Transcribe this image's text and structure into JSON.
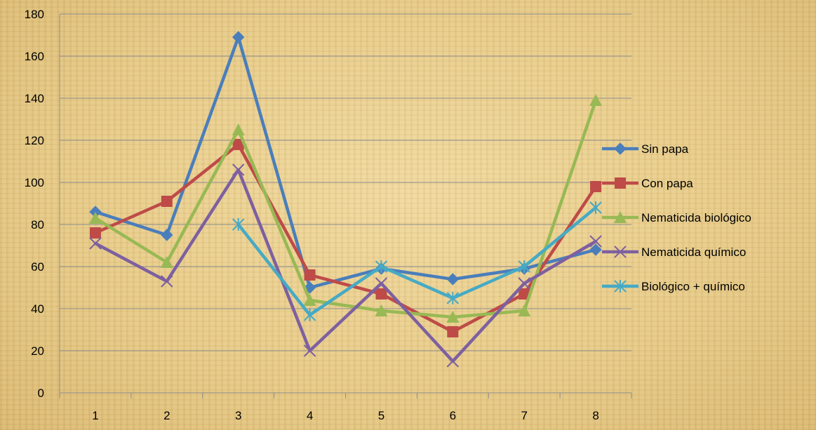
{
  "chart_data": {
    "type": "line",
    "title": "",
    "xlabel": "",
    "ylabel": "",
    "categories": [
      "1",
      "2",
      "3",
      "4",
      "5",
      "6",
      "7",
      "8"
    ],
    "ylim": [
      0,
      180
    ],
    "yticks": [
      "0",
      "20",
      "40",
      "60",
      "80",
      "100",
      "120",
      "140",
      "160",
      "180"
    ],
    "grid": "horizontal",
    "legend_position": "right",
    "series": [
      {
        "name": "Sin papa",
        "color": "#4a7ebb",
        "marker": "diamond",
        "values": [
          86,
          75,
          169,
          50,
          59,
          54,
          59,
          68
        ]
      },
      {
        "name": "Con papa",
        "color": "#be4b48",
        "marker": "square",
        "values": [
          76,
          91,
          118,
          56,
          47,
          29,
          47,
          98
        ]
      },
      {
        "name": "Nematicida biológico",
        "color": "#98b954",
        "marker": "triangle",
        "values": [
          83,
          62,
          125,
          44,
          39,
          36,
          39,
          139
        ]
      },
      {
        "name": "Nematicida químico",
        "color": "#7d60a0",
        "marker": "x",
        "values": [
          71,
          53,
          106,
          20,
          52,
          15,
          52,
          72
        ]
      },
      {
        "name": "Biológico + químico",
        "color": "#46aac5",
        "marker": "star",
        "values": [
          null,
          null,
          80,
          37,
          60,
          45,
          60,
          88
        ]
      }
    ]
  }
}
